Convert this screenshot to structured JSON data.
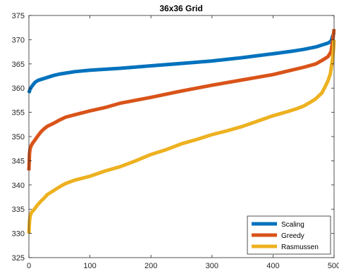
{
  "chart_data": {
    "type": "line",
    "title": "36x36 Grid",
    "xlabel": "",
    "ylabel": "",
    "xlim": [
      0,
      500
    ],
    "ylim": [
      325,
      375
    ],
    "xticks": [
      0,
      100,
      200,
      300,
      400,
      500
    ],
    "xtick_labels": [
      "0",
      "100",
      "200",
      "300",
      "400",
      "500"
    ],
    "yticks": [
      325,
      330,
      335,
      340,
      345,
      350,
      355,
      360,
      365,
      370,
      375
    ],
    "ytick_labels": [
      "325",
      "330",
      "335",
      "340",
      "345",
      "350",
      "355",
      "360",
      "365",
      "370",
      "375"
    ],
    "grid": false,
    "legend_position": "bottom-right",
    "series": [
      {
        "name": "Scaling",
        "color": "#0072BD",
        "x": [
          0,
          2,
          5,
          10,
          15,
          20,
          30,
          40,
          50,
          60,
          75,
          100,
          125,
          150,
          200,
          250,
          300,
          350,
          400,
          430,
          450,
          470,
          480,
          490,
          495,
          497,
          500
        ],
        "y": [
          359,
          359.8,
          360.4,
          361.2,
          361.6,
          361.8,
          362.2,
          362.6,
          362.9,
          363.1,
          363.4,
          363.7,
          363.9,
          364.1,
          364.6,
          365.1,
          365.6,
          366.3,
          367.1,
          367.6,
          368,
          368.5,
          368.9,
          369.3,
          369.7,
          370.5,
          371.5
        ]
      },
      {
        "name": "Greedy",
        "color": "#D95319",
        "x": [
          0,
          1,
          2,
          4,
          7,
          10,
          15,
          20,
          25,
          30,
          40,
          50,
          60,
          75,
          100,
          125,
          150,
          200,
          250,
          300,
          350,
          400,
          430,
          450,
          470,
          480,
          490,
          495,
          498,
          500
        ],
        "y": [
          343,
          346.5,
          347.5,
          348.2,
          348.8,
          349.3,
          350.2,
          351,
          351.6,
          352.1,
          352.7,
          353.4,
          354,
          354.5,
          355.3,
          356,
          356.9,
          358.1,
          359.4,
          360.6,
          361.7,
          362.8,
          363.7,
          364.3,
          365,
          365.7,
          366.5,
          367.5,
          370,
          372.2
        ]
      },
      {
        "name": "Rasmussen",
        "color": "#EDB120",
        "x": [
          0,
          1,
          2,
          4,
          7,
          10,
          15,
          20,
          25,
          30,
          40,
          50,
          60,
          75,
          100,
          125,
          150,
          175,
          200,
          225,
          250,
          275,
          300,
          325,
          350,
          375,
          400,
          425,
          440,
          450,
          460,
          470,
          480,
          485,
          490,
          494,
          497,
          499,
          500
        ],
        "y": [
          330,
          332.5,
          333.5,
          334.3,
          334.7,
          335.2,
          336,
          336.7,
          337.3,
          338,
          338.8,
          339.6,
          340.3,
          341,
          341.8,
          342.9,
          343.8,
          345,
          346.3,
          347.3,
          348.5,
          349.4,
          350.4,
          351.2,
          352.1,
          353.2,
          354.3,
          355.2,
          355.8,
          356.3,
          357,
          357.8,
          359,
          360.2,
          361.5,
          363,
          365.5,
          368,
          370
        ]
      }
    ]
  }
}
